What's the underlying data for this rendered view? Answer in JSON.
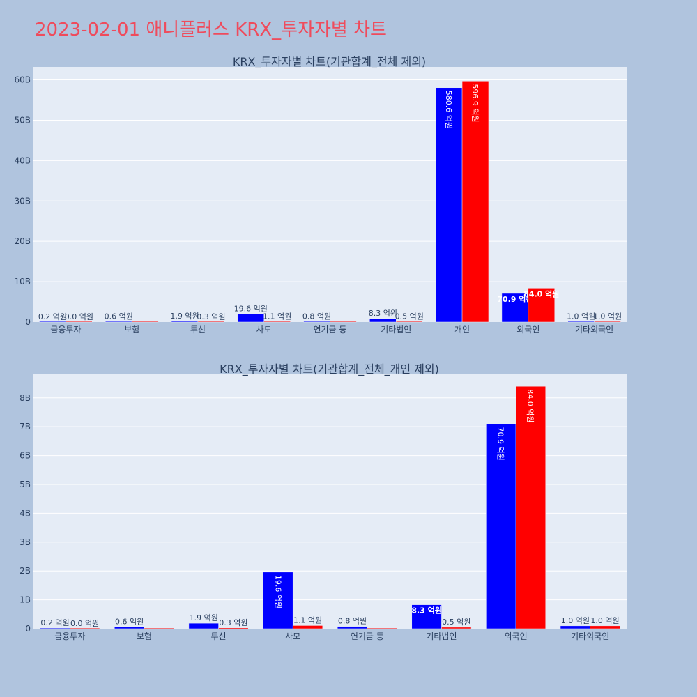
{
  "page_title": "2023-02-01 애니플러스 KRX_투자자별 차트",
  "colors": {
    "buy": "#0000ff",
    "sell": "#ff0000",
    "title": "#ef4b5c",
    "plot_bg": "#e5ecf6",
    "page_bg": "#b0c4de"
  },
  "chart_data": [
    {
      "type": "bar",
      "title": "KRX_투자자별 차트(기관합계_전체 제외)",
      "categories": [
        "금융투자",
        "보험",
        "투신",
        "사모",
        "연기금 등",
        "기타법인",
        "개인",
        "외국인",
        "기타외국인"
      ],
      "series": [
        {
          "values": [
            0.02,
            0.06,
            0.19,
            1.96,
            0.08,
            0.83,
            58.06,
            7.09,
            0.1
          ],
          "labels": [
            "0.2 억원",
            "0.6 억원",
            "1.9 억원",
            "19.6 억원",
            "0.8 억원",
            "8.3 억원",
            "580.6 억원",
            "70.9 억원",
            "1.0 억원"
          ]
        },
        {
          "values": [
            0.0,
            0.0,
            0.03,
            0.11,
            0.0,
            0.05,
            59.69,
            8.4,
            0.1
          ],
          "labels": [
            "0.0 억원",
            "",
            "0.3 억원",
            "1.1 억원",
            "",
            "0.5 억원",
            "596.9 억원",
            "84.0 억원",
            "1.0 억원"
          ]
        }
      ],
      "yticks": [
        "0",
        "10B",
        "20B",
        "30B",
        "40B",
        "50B",
        "60B"
      ],
      "ytick_values": [
        0,
        10,
        20,
        30,
        40,
        50,
        60
      ],
      "ylim": [
        0,
        63.2
      ],
      "grid": true
    },
    {
      "type": "bar",
      "title": "KRX_투자자별 차트(기관합계_전체_개인 제외)",
      "categories": [
        "금융투자",
        "보험",
        "투신",
        "사모",
        "연기금 등",
        "기타법인",
        "외국인",
        "기타외국인"
      ],
      "series": [
        {
          "values": [
            0.02,
            0.06,
            0.19,
            1.96,
            0.08,
            0.83,
            7.09,
            0.1
          ],
          "labels": [
            "0.2 억원",
            "0.6 억원",
            "1.9 억원",
            "19.6 억원",
            "0.8 억원",
            "8.3 억원",
            "70.9 억원",
            "1.0 억원"
          ]
        },
        {
          "values": [
            0.0,
            0.0,
            0.03,
            0.11,
            0.0,
            0.05,
            8.4,
            0.1
          ],
          "labels": [
            "0.0 억원",
            "",
            "0.3 억원",
            "1.1 억원",
            "",
            "0.5 억원",
            "84.0 억원",
            "1.0 억원"
          ]
        }
      ],
      "yticks": [
        "0",
        "1B",
        "2B",
        "3B",
        "4B",
        "5B",
        "6B",
        "7B",
        "8B"
      ],
      "ytick_values": [
        0,
        1,
        2,
        3,
        4,
        5,
        6,
        7,
        8
      ],
      "ylim": [
        0,
        8.84
      ],
      "grid": true
    }
  ]
}
